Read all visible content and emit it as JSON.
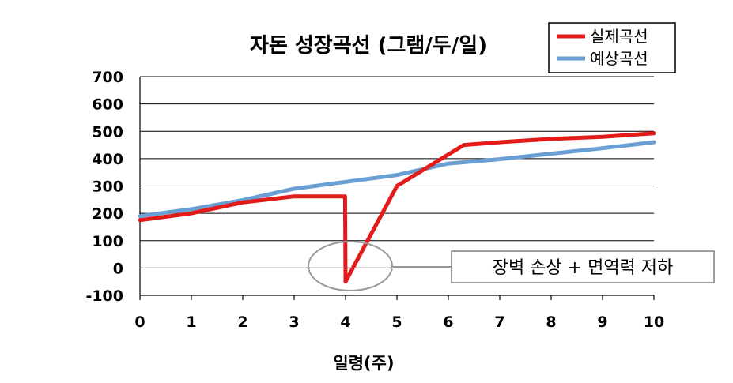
{
  "chart_data": {
    "type": "line",
    "title": "자돈 성장곡선 (그램/두/일)",
    "xlabel": "일령(주)",
    "ylabel": "",
    "xlim": [
      0,
      10
    ],
    "ylim": [
      -100,
      700
    ],
    "xticks": [
      0,
      1,
      2,
      3,
      4,
      5,
      6,
      7,
      8,
      9,
      10
    ],
    "yticks": [
      -100,
      0,
      100,
      200,
      300,
      400,
      500,
      600,
      700
    ],
    "grid": "horizontal",
    "legend_position": "top-right",
    "series": [
      {
        "name": "실제곡선",
        "color": "#e31b1b",
        "points": [
          [
            0,
            175
          ],
          [
            1,
            200
          ],
          [
            2,
            240
          ],
          [
            3,
            262
          ],
          [
            3.99,
            262
          ],
          [
            4,
            -50
          ],
          [
            5,
            300
          ],
          [
            6.3,
            450
          ],
          [
            7,
            460
          ],
          [
            8,
            472
          ],
          [
            9,
            480
          ],
          [
            10,
            493
          ]
        ]
      },
      {
        "name": "예상곡선",
        "color": "#6a9fd4",
        "points": [
          [
            0,
            190
          ],
          [
            1,
            215
          ],
          [
            2,
            248
          ],
          [
            3,
            290
          ],
          [
            4,
            315
          ],
          [
            5,
            340
          ],
          [
            6,
            382
          ],
          [
            7,
            398
          ],
          [
            8,
            418
          ],
          [
            9,
            438
          ],
          [
            10,
            460
          ]
        ]
      }
    ],
    "annotation": {
      "text": "장벽 손상 + 면역력 저하",
      "target": [
        4,
        0
      ]
    }
  }
}
